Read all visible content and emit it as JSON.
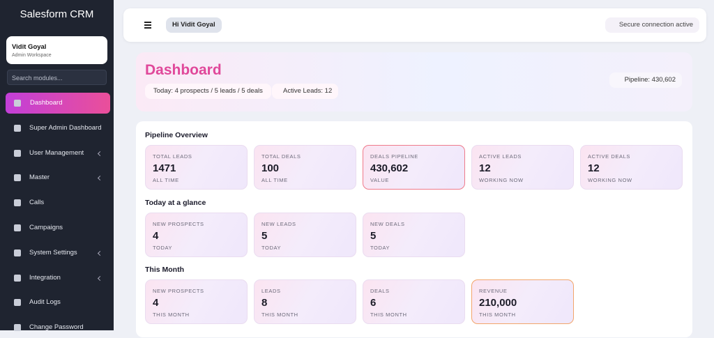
{
  "sidebar": {
    "brand": "Salesform CRM",
    "user": {
      "name": "Vidit Goyal",
      "role": "Admin Workspace"
    },
    "search_placeholder": "Search modules...",
    "nav": [
      {
        "label": "Dashboard",
        "active": true
      },
      {
        "label": "Super Admin Dashboard"
      },
      {
        "label": "User Management",
        "submenu": true
      },
      {
        "label": "Master",
        "submenu": true
      },
      {
        "label": "Calls"
      },
      {
        "label": "Campaigns"
      },
      {
        "label": "System Settings",
        "submenu": true
      },
      {
        "label": "Integration",
        "submenu": true
      },
      {
        "label": "Audit Logs"
      },
      {
        "label": "Change Password"
      }
    ]
  },
  "header": {
    "greeting": "Hi Vidit Goyal",
    "status": "Secure connection active"
  },
  "hero": {
    "title": "Dashboard",
    "today": "Today: 4 prospects / 5 leads / 5 deals",
    "active_leads": "Active Leads: 12",
    "pipeline": "Pipeline: 430,602"
  },
  "sections": [
    {
      "title": "Pipeline Overview",
      "cards": [
        {
          "label": "TOTAL LEADS",
          "value": "1471",
          "note": "ALL TIME"
        },
        {
          "label": "TOTAL DEALS",
          "value": "100",
          "note": "ALL TIME"
        },
        {
          "label": "DEALS PIPELINE",
          "value": "430,602",
          "note": "VALUE",
          "border_color": "#ef7a8a"
        },
        {
          "label": "ACTIVE LEADS",
          "value": "12",
          "note": "WORKING NOW"
        },
        {
          "label": "ACTIVE DEALS",
          "value": "12",
          "note": "WORKING NOW"
        }
      ]
    },
    {
      "title": "Today at a glance",
      "cards": [
        {
          "label": "NEW PROSPECTS",
          "value": "4",
          "note": "TODAY"
        },
        {
          "label": "NEW LEADS",
          "value": "5",
          "note": "TODAY"
        },
        {
          "label": "NEW DEALS",
          "value": "5",
          "note": "TODAY"
        }
      ]
    },
    {
      "title": "This Month",
      "cards": [
        {
          "label": "NEW PROSPECTS",
          "value": "4",
          "note": "THIS MONTH"
        },
        {
          "label": "LEADS",
          "value": "8",
          "note": "THIS MONTH"
        },
        {
          "label": "DEALS",
          "value": "6",
          "note": "THIS MONTH"
        },
        {
          "label": "REVENUE",
          "value": "210,000",
          "note": "THIS MONTH",
          "border_color": "#f2a56a"
        }
      ]
    }
  ]
}
